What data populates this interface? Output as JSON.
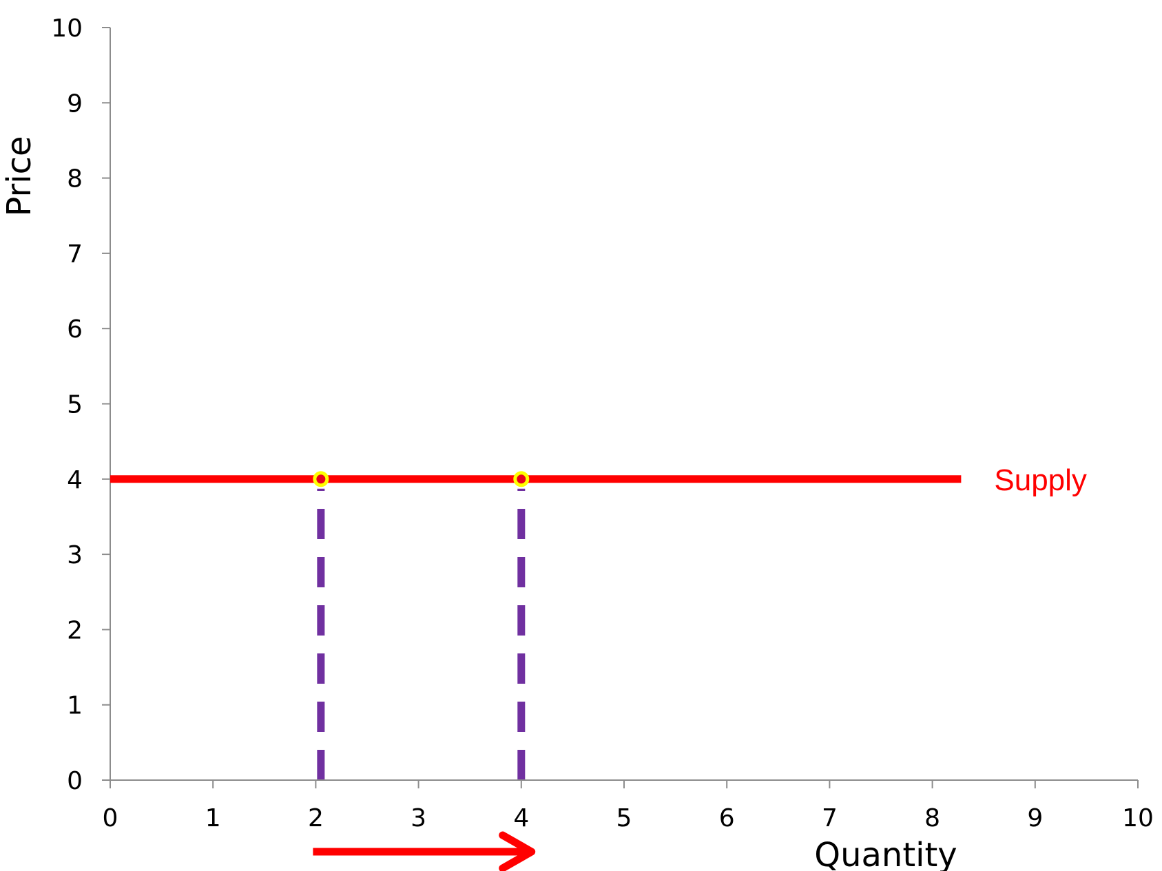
{
  "chart_data": {
    "type": "line",
    "xlabel": "Quantity",
    "ylabel": "Price",
    "xlim": [
      0,
      10
    ],
    "ylim": [
      0,
      10
    ],
    "x_ticks": [
      "0",
      "1",
      "2",
      "3",
      "4",
      "5",
      "6",
      "7",
      "8",
      "9",
      "10"
    ],
    "y_ticks": [
      "0",
      "1",
      "2",
      "3",
      "4",
      "5",
      "6",
      "7",
      "8",
      "9",
      "10"
    ],
    "grid": false,
    "series": [
      {
        "name": "Supply",
        "color": "#ff0000",
        "points": [
          {
            "x": 0,
            "y": 4
          },
          {
            "x": 8.28,
            "y": 4
          }
        ]
      }
    ],
    "marked_points": [
      {
        "x": 2.05,
        "y": 4,
        "fill": "#e8001c",
        "ring": "#ffff00"
      },
      {
        "x": 4.0,
        "y": 4,
        "fill": "#e8001c",
        "ring": "#ffff00"
      }
    ],
    "guide_lines": [
      {
        "x": 2.05,
        "from_y": 0,
        "to_y": 4,
        "color": "#7030a0",
        "style": "dashed"
      },
      {
        "x": 4.0,
        "from_y": 0,
        "to_y": 4,
        "color": "#7030a0",
        "style": "dashed"
      }
    ],
    "annotation_arrow": {
      "from_x": 2.0,
      "to_x": 4.1,
      "direction": "right",
      "color": "#ff0000"
    }
  }
}
